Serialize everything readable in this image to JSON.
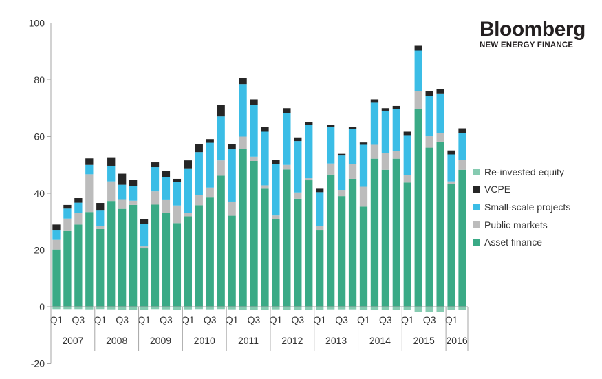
{
  "brand": {
    "name": "Bloomberg",
    "tagline": "NEW ENERGY FINANCE"
  },
  "colors": {
    "asset_finance": "#3aaa86",
    "public_markets": "#bcbcbc",
    "small_scale": "#3bbde6",
    "vcpe": "#262626",
    "reinvested": "#86cbb1"
  },
  "chart_data": {
    "type": "bar",
    "stacked": true,
    "title": "",
    "xlabel": "",
    "ylabel": "",
    "ylim": [
      -20,
      100
    ],
    "yticks": [
      -20,
      0,
      20,
      40,
      60,
      80,
      100
    ],
    "quarter_tick_labels": [
      "Q1",
      "Q3"
    ],
    "years": [
      "2007",
      "2008",
      "2009",
      "2010",
      "2011",
      "2012",
      "2013",
      "2014",
      "2015",
      "2016"
    ],
    "categories": [
      "2007 Q1",
      "2007 Q2",
      "2007 Q3",
      "2007 Q4",
      "2008 Q1",
      "2008 Q2",
      "2008 Q3",
      "2008 Q4",
      "2009 Q1",
      "2009 Q2",
      "2009 Q3",
      "2009 Q4",
      "2010 Q1",
      "2010 Q2",
      "2010 Q3",
      "2010 Q4",
      "2011 Q1",
      "2011 Q2",
      "2011 Q3",
      "2011 Q4",
      "2012 Q1",
      "2012 Q2",
      "2012 Q3",
      "2012 Q4",
      "2013 Q1",
      "2013 Q2",
      "2013 Q3",
      "2013 Q4",
      "2014 Q1",
      "2014 Q2",
      "2014 Q3",
      "2014 Q4",
      "2015 Q1",
      "2015 Q2",
      "2015 Q3",
      "2015 Q4",
      "2016 Q1",
      "2016 Q2"
    ],
    "series": [
      {
        "name": "Asset finance",
        "values": [
          20.2,
          26.7,
          29,
          33.4,
          27.4,
          37.3,
          34.5,
          35.9,
          20.6,
          36,
          33,
          29.5,
          31.9,
          35.8,
          38.5,
          46.2,
          32.1,
          55.6,
          51.4,
          41.6,
          30.9,
          48.4,
          38.1,
          44.6,
          26.9,
          46.6,
          39,
          45.1,
          35.3,
          52.2,
          48.3,
          52.2,
          43.8,
          69.6,
          56.1,
          58.2,
          43.3,
          48.3
        ]
      },
      {
        "name": "Public markets",
        "values": [
          3.4,
          4.4,
          4,
          13.3,
          1.2,
          6.9,
          3.2,
          1.5,
          0.7,
          4.7,
          4.6,
          6.2,
          1.2,
          3.5,
          3.5,
          5.4,
          5,
          4.4,
          1.5,
          1.2,
          1.3,
          1.6,
          2.2,
          0.7,
          1.5,
          3.9,
          2.2,
          5.2,
          7,
          4.9,
          6,
          2.7,
          2.6,
          6.4,
          4,
          2.9,
          0.9,
          3.5
        ]
      },
      {
        "name": "Small-scale projects",
        "values": [
          3.3,
          3.5,
          3.7,
          3.3,
          5.3,
          5.5,
          5.3,
          5.1,
          8,
          8.5,
          8.1,
          8.2,
          15.7,
          15.2,
          15.8,
          15.5,
          18.4,
          18.5,
          18.3,
          18.9,
          18,
          18.3,
          18.1,
          18.7,
          12,
          13,
          12.1,
          12.4,
          14.8,
          14.8,
          14.8,
          14.8,
          14.1,
          14.3,
          14.3,
          14.1,
          9.5,
          9.3
        ]
      },
      {
        "name": "VCPE",
        "values": [
          2.1,
          1.3,
          1.6,
          2.3,
          2.7,
          3,
          3.9,
          2.2,
          1.5,
          1.7,
          2.1,
          1.2,
          2.8,
          2.9,
          1.3,
          4,
          1.9,
          2.2,
          1.9,
          1.6,
          1.6,
          1.7,
          1.3,
          1.1,
          1.2,
          0.5,
          0.6,
          0.7,
          0.8,
          1.2,
          0.9,
          1.1,
          1.2,
          1.7,
          1.5,
          1.6,
          1.4,
          1.8
        ]
      },
      {
        "name": "Re-invested equity",
        "values": [
          -0.8,
          -0.8,
          -0.8,
          -0.9,
          -0.8,
          -0.9,
          -1,
          -1.2,
          -1,
          -0.8,
          -0.9,
          -1,
          -0.9,
          -0.8,
          -0.9,
          -0.8,
          -0.9,
          -1,
          -1,
          -1.1,
          -0.9,
          -1.1,
          -1.2,
          -1,
          -1.1,
          -0.9,
          -0.9,
          -0.9,
          -1,
          -1.2,
          -1,
          -1.1,
          -1.1,
          -1.7,
          -1.8,
          -1.7,
          -1.1,
          -1.2
        ]
      }
    ],
    "legend": {
      "placement": "right",
      "entries": [
        "Re-invested equity",
        "VCPE",
        "Small-scale projects",
        "Public markets",
        "Asset finance"
      ]
    },
    "grid": false
  }
}
